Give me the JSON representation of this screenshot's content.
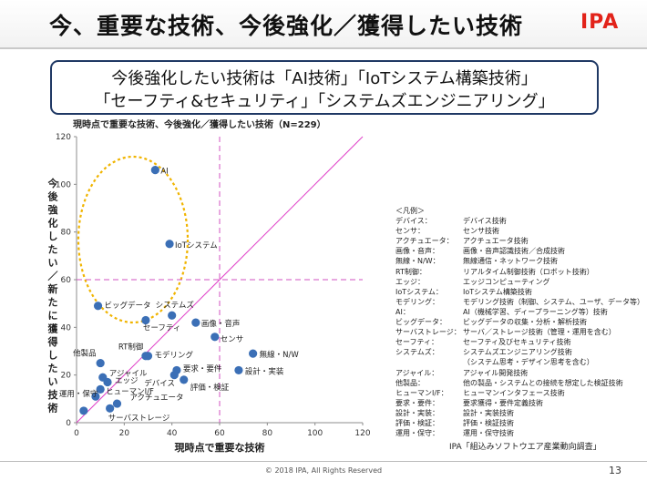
{
  "slide": {
    "title": "今、重要な技術、今後強化／獲得したい技術",
    "logo": "IPA",
    "headline_line1": "今後強化したい技術は「AI技術」「IoTシステム構築技術」",
    "headline_line2": "「セーフティ&セキュリティ」「システムズエンジニアリング」",
    "source": "IPA「組込みソフトウエア産業動向調査」",
    "copyright": "© 2018 IPA, All Rights Reserved",
    "page_number": "13",
    "colors": {
      "dot": "#3b6fb6",
      "diagonal": "#e040c8",
      "reference_line": "#d050c0",
      "highlight_ellipse": "#f0b400",
      "logo": "#e2231a",
      "headline_border": "#1f3864"
    }
  },
  "chart_data": {
    "type": "scatter",
    "title": "現時点で重要な技術、今後強化／獲得したい技術（N=229）",
    "xlabel": "現時点で重要な技術",
    "ylabel": "今後強化したい／新たに獲得したい技術",
    "xlim": [
      0,
      120
    ],
    "ylim": [
      0,
      120
    ],
    "x_ticks": [
      0,
      20,
      40,
      60,
      80,
      100,
      120
    ],
    "y_ticks": [
      0,
      20,
      40,
      60,
      80,
      100,
      120
    ],
    "grid": false,
    "reference_lines": {
      "x": 60,
      "y": 60
    },
    "diagonal": true,
    "points": [
      {
        "label": "AI",
        "x": 33,
        "y": 106
      },
      {
        "label": "IoTシステム",
        "x": 39,
        "y": 75
      },
      {
        "label": "ビッグデータ",
        "x": 9,
        "y": 49
      },
      {
        "label": "システムズ",
        "x": 40,
        "y": 45
      },
      {
        "label": "セーフティ",
        "x": 29,
        "y": 43
      },
      {
        "label": "画像・音声",
        "x": 50,
        "y": 42
      },
      {
        "label": "センサ",
        "x": 58,
        "y": 36
      },
      {
        "label": "無線・N/W",
        "x": 74,
        "y": 29
      },
      {
        "label": "モデリング",
        "x": 30,
        "y": 28
      },
      {
        "label": "RT制御",
        "x": 29,
        "y": 28
      },
      {
        "label": "他製品",
        "x": 10,
        "y": 25
      },
      {
        "label": "設計・実装",
        "x": 68,
        "y": 22
      },
      {
        "label": "要求・要件",
        "x": 42,
        "y": 22
      },
      {
        "label": "デバイス",
        "x": 41,
        "y": 20
      },
      {
        "label": "アジャイル",
        "x": 11,
        "y": 19
      },
      {
        "label": "評価・検証",
        "x": 45,
        "y": 18
      },
      {
        "label": "エッジ",
        "x": 13,
        "y": 17
      },
      {
        "label": "ヒューマンI/F",
        "x": 10,
        "y": 14
      },
      {
        "label": "運用・保守",
        "x": 8,
        "y": 11
      },
      {
        "label": "アクチュエータ",
        "x": 17,
        "y": 8
      },
      {
        "label": "サーバストレージ",
        "x": 14,
        "y": 6
      },
      {
        "label": "",
        "x": 3,
        "y": 5
      }
    ]
  },
  "legend": {
    "header": "＜凡例＞",
    "items": [
      {
        "key": "デバイス：",
        "value": "デバイス技術"
      },
      {
        "key": "センサ：",
        "value": "センサ技術"
      },
      {
        "key": "アクチュエータ：",
        "value": "アクチュエータ技術"
      },
      {
        "key": "画像・音声：",
        "value": "画像・音声認識技術／合成技術"
      },
      {
        "key": "無線・N/W：",
        "value": "無線通信・ネットワーク技術"
      },
      {
        "key": "RT制御：",
        "value": "リアルタイム制御技術（ロボット技術）"
      },
      {
        "key": "エッジ：",
        "value": "エッジコンピューティング"
      },
      {
        "key": "IoTシステム：",
        "value": "IoTシステム構築技術"
      },
      {
        "key": "モデリング：",
        "value": "モデリング技術（制御、システム、ユーザ、データ等）"
      },
      {
        "key": "AI：",
        "value": "AI（機械学習、ディープラーニング等）技術"
      },
      {
        "key": "ビッグデータ：",
        "value": "ビッグデータの収集・分析・解析技術"
      },
      {
        "key": "サーバストレージ：",
        "value": "サーバ／ストレージ技術（管理・運用を含む）"
      },
      {
        "key": "セーフティ：",
        "value": "セーフティ及びセキュリティ技術"
      },
      {
        "key": "システムズ：",
        "value": "システムズエンジニアリング技術"
      },
      {
        "key": "",
        "value": "（システム思考・デザイン思考を含む）"
      },
      {
        "key": "アジャイル：",
        "value": "アジャイル開発技術"
      },
      {
        "key": "他製品：",
        "value": "他の製品・システムとの接続を想定した検証技術"
      },
      {
        "key": "ヒューマンI/F：",
        "value": "ヒューマンインタフェース技術"
      },
      {
        "key": "要求・要件：",
        "value": "要求獲得・要件定義技術"
      },
      {
        "key": "設計・実装：",
        "value": "設計・実装技術"
      },
      {
        "key": "評価・検証：",
        "value": "評価・検証技術"
      },
      {
        "key": "運用・保守：",
        "value": "運用・保守技術"
      }
    ]
  }
}
